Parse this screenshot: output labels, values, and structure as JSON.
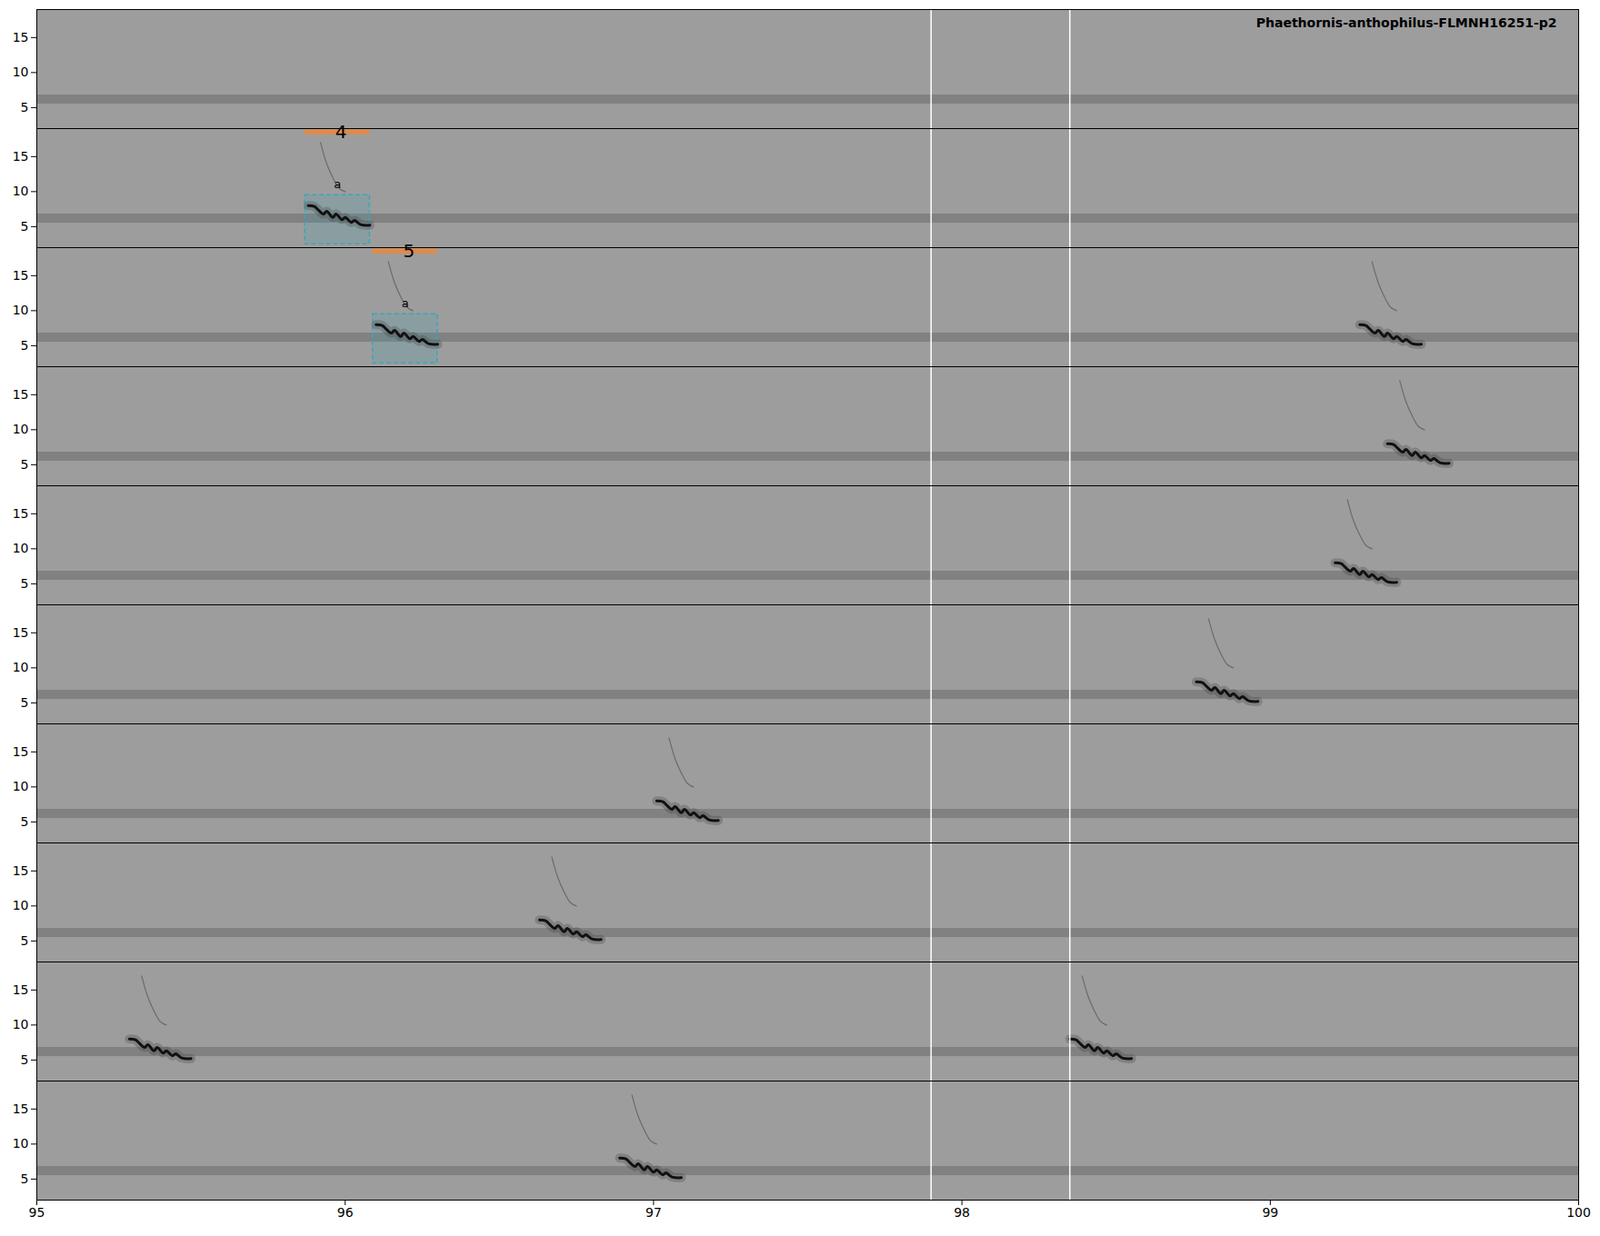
{
  "chart_data": {
    "type": "spectrogram",
    "title": "Phaethornis-anthophilus-FLMNH16251-p2",
    "xlim": [
      95,
      100
    ],
    "xticks": [
      95,
      96,
      97,
      98,
      99,
      100
    ],
    "ylim": [
      2,
      19
    ],
    "yticks": [
      5,
      10,
      15
    ],
    "rows": [
      1,
      2,
      3,
      4,
      5,
      6,
      7,
      8,
      9,
      10
    ],
    "noise_band": [
      5.5,
      6.8
    ],
    "markers": [
      97.9,
      98.35
    ],
    "calls": {
      "row": [
        2,
        3,
        3,
        4,
        5,
        6,
        7,
        8,
        9,
        9,
        10
      ],
      "start": [
        95.88,
        96.1,
        99.29,
        99.38,
        99.21,
        98.76,
        97.01,
        96.63,
        95.3,
        98.35,
        96.89
      ]
    },
    "contour": {
      "t": [
        0,
        0.02,
        0.03,
        0.05,
        0.06,
        0.08,
        0.09,
        0.11,
        0.12,
        0.14,
        0.15,
        0.17,
        0.2
      ],
      "f": [
        8,
        7.9,
        7.5,
        6.8,
        7.2,
        6.3,
        6.8,
        6.0,
        6.3,
        5.6,
        5.9,
        5.3,
        5.2
      ]
    },
    "harmonic": {
      "t": [
        0.04,
        0.06,
        0.08,
        0.1,
        0.12
      ],
      "f": [
        17,
        14,
        12,
        10.5,
        10
      ]
    },
    "selections": [
      {
        "row": 2,
        "label": "4",
        "sound": "a",
        "start": 95.87,
        "end": 96.08,
        "low": 2.5,
        "high": 9.5
      },
      {
        "row": 3,
        "label": "5",
        "sound": "a",
        "start": 96.09,
        "end": 96.3,
        "low": 2.5,
        "high": 9.5
      }
    ]
  }
}
